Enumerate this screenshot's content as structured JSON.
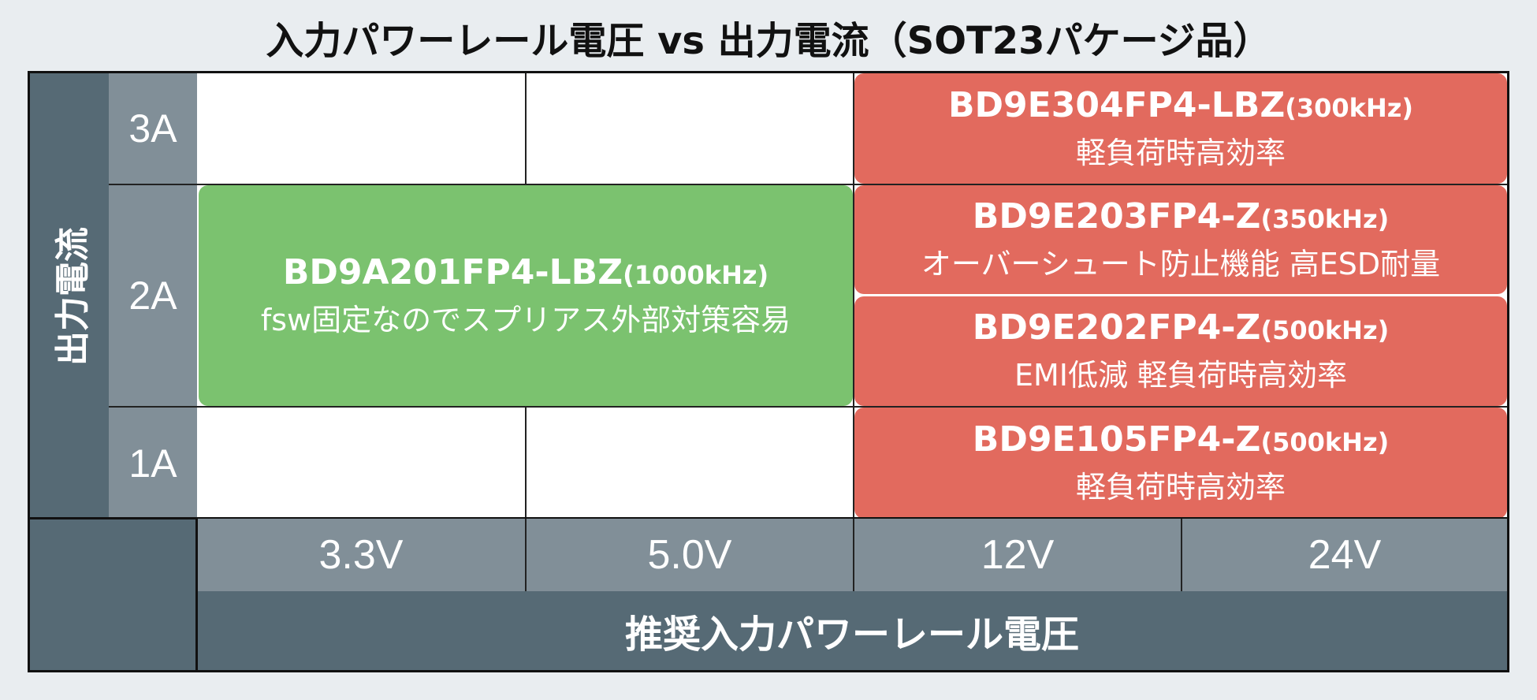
{
  "title": "入力パワーレール電圧 vs 出力電流（SOT23パケージ品）",
  "y_axis_label": "出力電流",
  "x_axis_label": "推奨入力パワーレール電圧",
  "current_levels": [
    "3A",
    "2A",
    "1A"
  ],
  "voltages": [
    "3.3V",
    "5.0V",
    "12V",
    "24V"
  ],
  "products": [
    {
      "name": "BD9E304FP4-LBZ",
      "freq": "(300kHz)",
      "desc": "軽負荷時高効率",
      "color": "#e26a5e"
    },
    {
      "name": "BD9E203FP4-Z",
      "freq": "(350kHz)",
      "desc": "オーバーシュート防止機能 高ESD耐量",
      "color": "#e26a5e"
    },
    {
      "name": "BD9E202FP4-Z",
      "freq": "(500kHz)",
      "desc": "EMI低減 軽負荷時高効率",
      "color": "#e26a5e"
    },
    {
      "name": "BD9E105FP4-Z",
      "freq": "(500kHz)",
      "desc": "軽負荷時高効率",
      "color": "#e26a5e"
    },
    {
      "name": "BD9A201FP4-LBZ",
      "freq": "(1000kHz)",
      "desc": "fsw固定なのでスプリアス外部対策容易",
      "color": "#7bc26f"
    }
  ]
}
